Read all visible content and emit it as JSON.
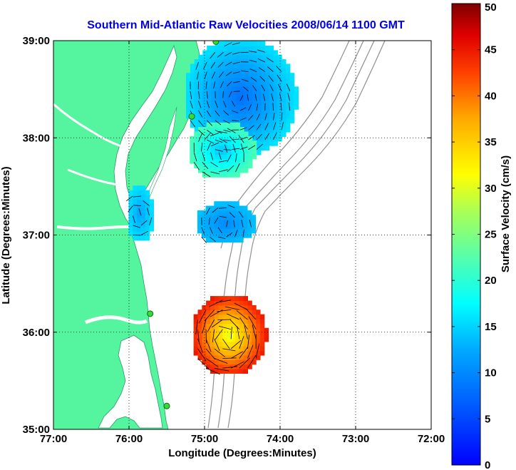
{
  "chart_data": {
    "type": "heatmap",
    "title": "Southern Mid-Atlantic Raw Velocities 2008/06/14 1100 GMT",
    "xlabel": "Longitude (Degrees:Minutes)",
    "ylabel": "Latitude (Degrees:Minutes)",
    "colorbar_label": "Surface Velocity (cm/s)",
    "xlim": [
      -77,
      -72
    ],
    "ylim": [
      35,
      39
    ],
    "x_ticks": [
      {
        "value": -77,
        "label": "77:00"
      },
      {
        "value": -76,
        "label": "76:00"
      },
      {
        "value": -75,
        "label": "75:00"
      },
      {
        "value": -74,
        "label": "74:00"
      },
      {
        "value": -73,
        "label": "73:00"
      },
      {
        "value": -72,
        "label": "72:00"
      }
    ],
    "y_ticks": [
      {
        "value": 35,
        "label": "35:00"
      },
      {
        "value": 36,
        "label": "36:00"
      },
      {
        "value": 37,
        "label": "37:00"
      },
      {
        "value": 38,
        "label": "38:00"
      },
      {
        "value": 39,
        "label": "39:00"
      }
    ],
    "colorbar_range": [
      0,
      50
    ],
    "colorbar_ticks": [
      {
        "value": 0,
        "label": "0"
      },
      {
        "value": 5,
        "label": "5"
      },
      {
        "value": 10,
        "label": "10"
      },
      {
        "value": 15,
        "label": "15"
      },
      {
        "value": 20,
        "label": "20"
      },
      {
        "value": 25,
        "label": "25"
      },
      {
        "value": 30,
        "label": "30"
      },
      {
        "value": 35,
        "label": "35"
      },
      {
        "value": 40,
        "label": "40"
      },
      {
        "value": 45,
        "label": "45"
      },
      {
        "value": 50,
        "label": "50"
      }
    ],
    "grid": "dotted",
    "velocity_regions": [
      {
        "name": "northern-field",
        "lon": -74.55,
        "lat": 38.4,
        "rx": 0.75,
        "ry": 0.62,
        "speed_center": 8,
        "speed_edge": 16
      },
      {
        "name": "delaware-bay-patch",
        "lon": -74.8,
        "lat": 37.85,
        "rx": 0.45,
        "ry": 0.3,
        "speed_center": 14,
        "speed_edge": 22
      },
      {
        "name": "inner-shelf-patch",
        "lon": -75.88,
        "lat": 37.2,
        "rx": 0.18,
        "ry": 0.3,
        "speed_center": 12,
        "speed_edge": 16
      },
      {
        "name": "central-shelf-patch",
        "lon": -74.75,
        "lat": 37.1,
        "rx": 0.4,
        "ry": 0.22,
        "speed_center": 10,
        "speed_edge": 14
      },
      {
        "name": "southern-field",
        "lon": -74.7,
        "lat": 35.95,
        "rx": 0.5,
        "ry": 0.42,
        "speed_center": 30,
        "speed_edge": 45
      }
    ],
    "radar_stations": [
      {
        "lon": -74.85,
        "lat": 38.99
      },
      {
        "lon": -75.17,
        "lat": 38.22
      },
      {
        "lon": -75.72,
        "lat": 36.19
      },
      {
        "lon": -75.5,
        "lat": 35.24
      }
    ]
  }
}
